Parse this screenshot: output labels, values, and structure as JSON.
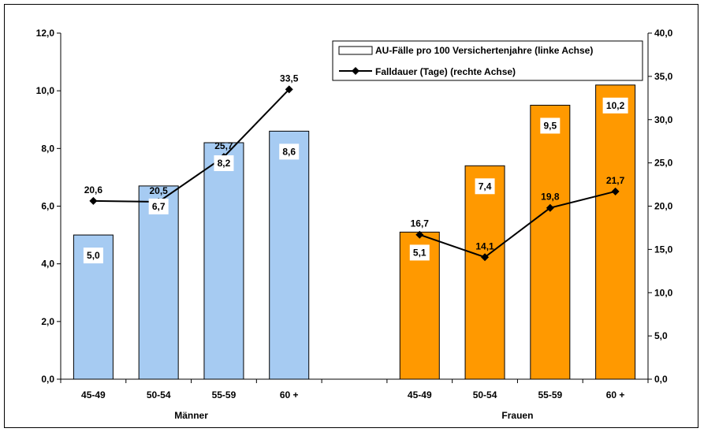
{
  "chart_data": {
    "type": "bar",
    "groups": [
      {
        "name": "Männer",
        "categories": [
          "45-49",
          "50-54",
          "55-59",
          "60 +"
        ],
        "bar_values": [
          5.0,
          6.7,
          8.2,
          8.6
        ],
        "bar_labels": [
          "5,0",
          "6,7",
          "8,2",
          "8,6"
        ],
        "line_values": [
          20.6,
          20.5,
          25.7,
          33.5
        ],
        "line_labels": [
          "20,6",
          "20,5",
          "25,7",
          "33,5"
        ],
        "color": "#a6cbf2"
      },
      {
        "name": "Frauen",
        "categories": [
          "45-49",
          "50-54",
          "55-59",
          "60 +"
        ],
        "bar_values": [
          5.1,
          7.4,
          9.5,
          10.2
        ],
        "bar_labels": [
          "5,1",
          "7,4",
          "9,5",
          "10,2"
        ],
        "line_values": [
          16.7,
          14.1,
          19.8,
          21.7
        ],
        "line_labels": [
          "16,7",
          "14,1",
          "19,8",
          "21,7"
        ],
        "color": "#ff9900"
      }
    ],
    "series": [
      {
        "name": "AU-Fälle pro 100 Versichertenjahre (linke Achse)",
        "type": "bar",
        "axis": "left"
      },
      {
        "name": "Falldauer (Tage) (rechte Achse)",
        "type": "line",
        "axis": "right"
      }
    ],
    "left_axis": {
      "min": 0,
      "max": 12,
      "ticks": [
        "0,0",
        "2,0",
        "4,0",
        "6,0",
        "8,0",
        "10,0",
        "12,0"
      ]
    },
    "right_axis": {
      "min": 0,
      "max": 40,
      "ticks": [
        "0,0",
        "5,0",
        "10,0",
        "15,0",
        "20,0",
        "25,0",
        "30,0",
        "35,0",
        "40,0"
      ]
    },
    "legend_position": "top-right",
    "grid": false
  }
}
